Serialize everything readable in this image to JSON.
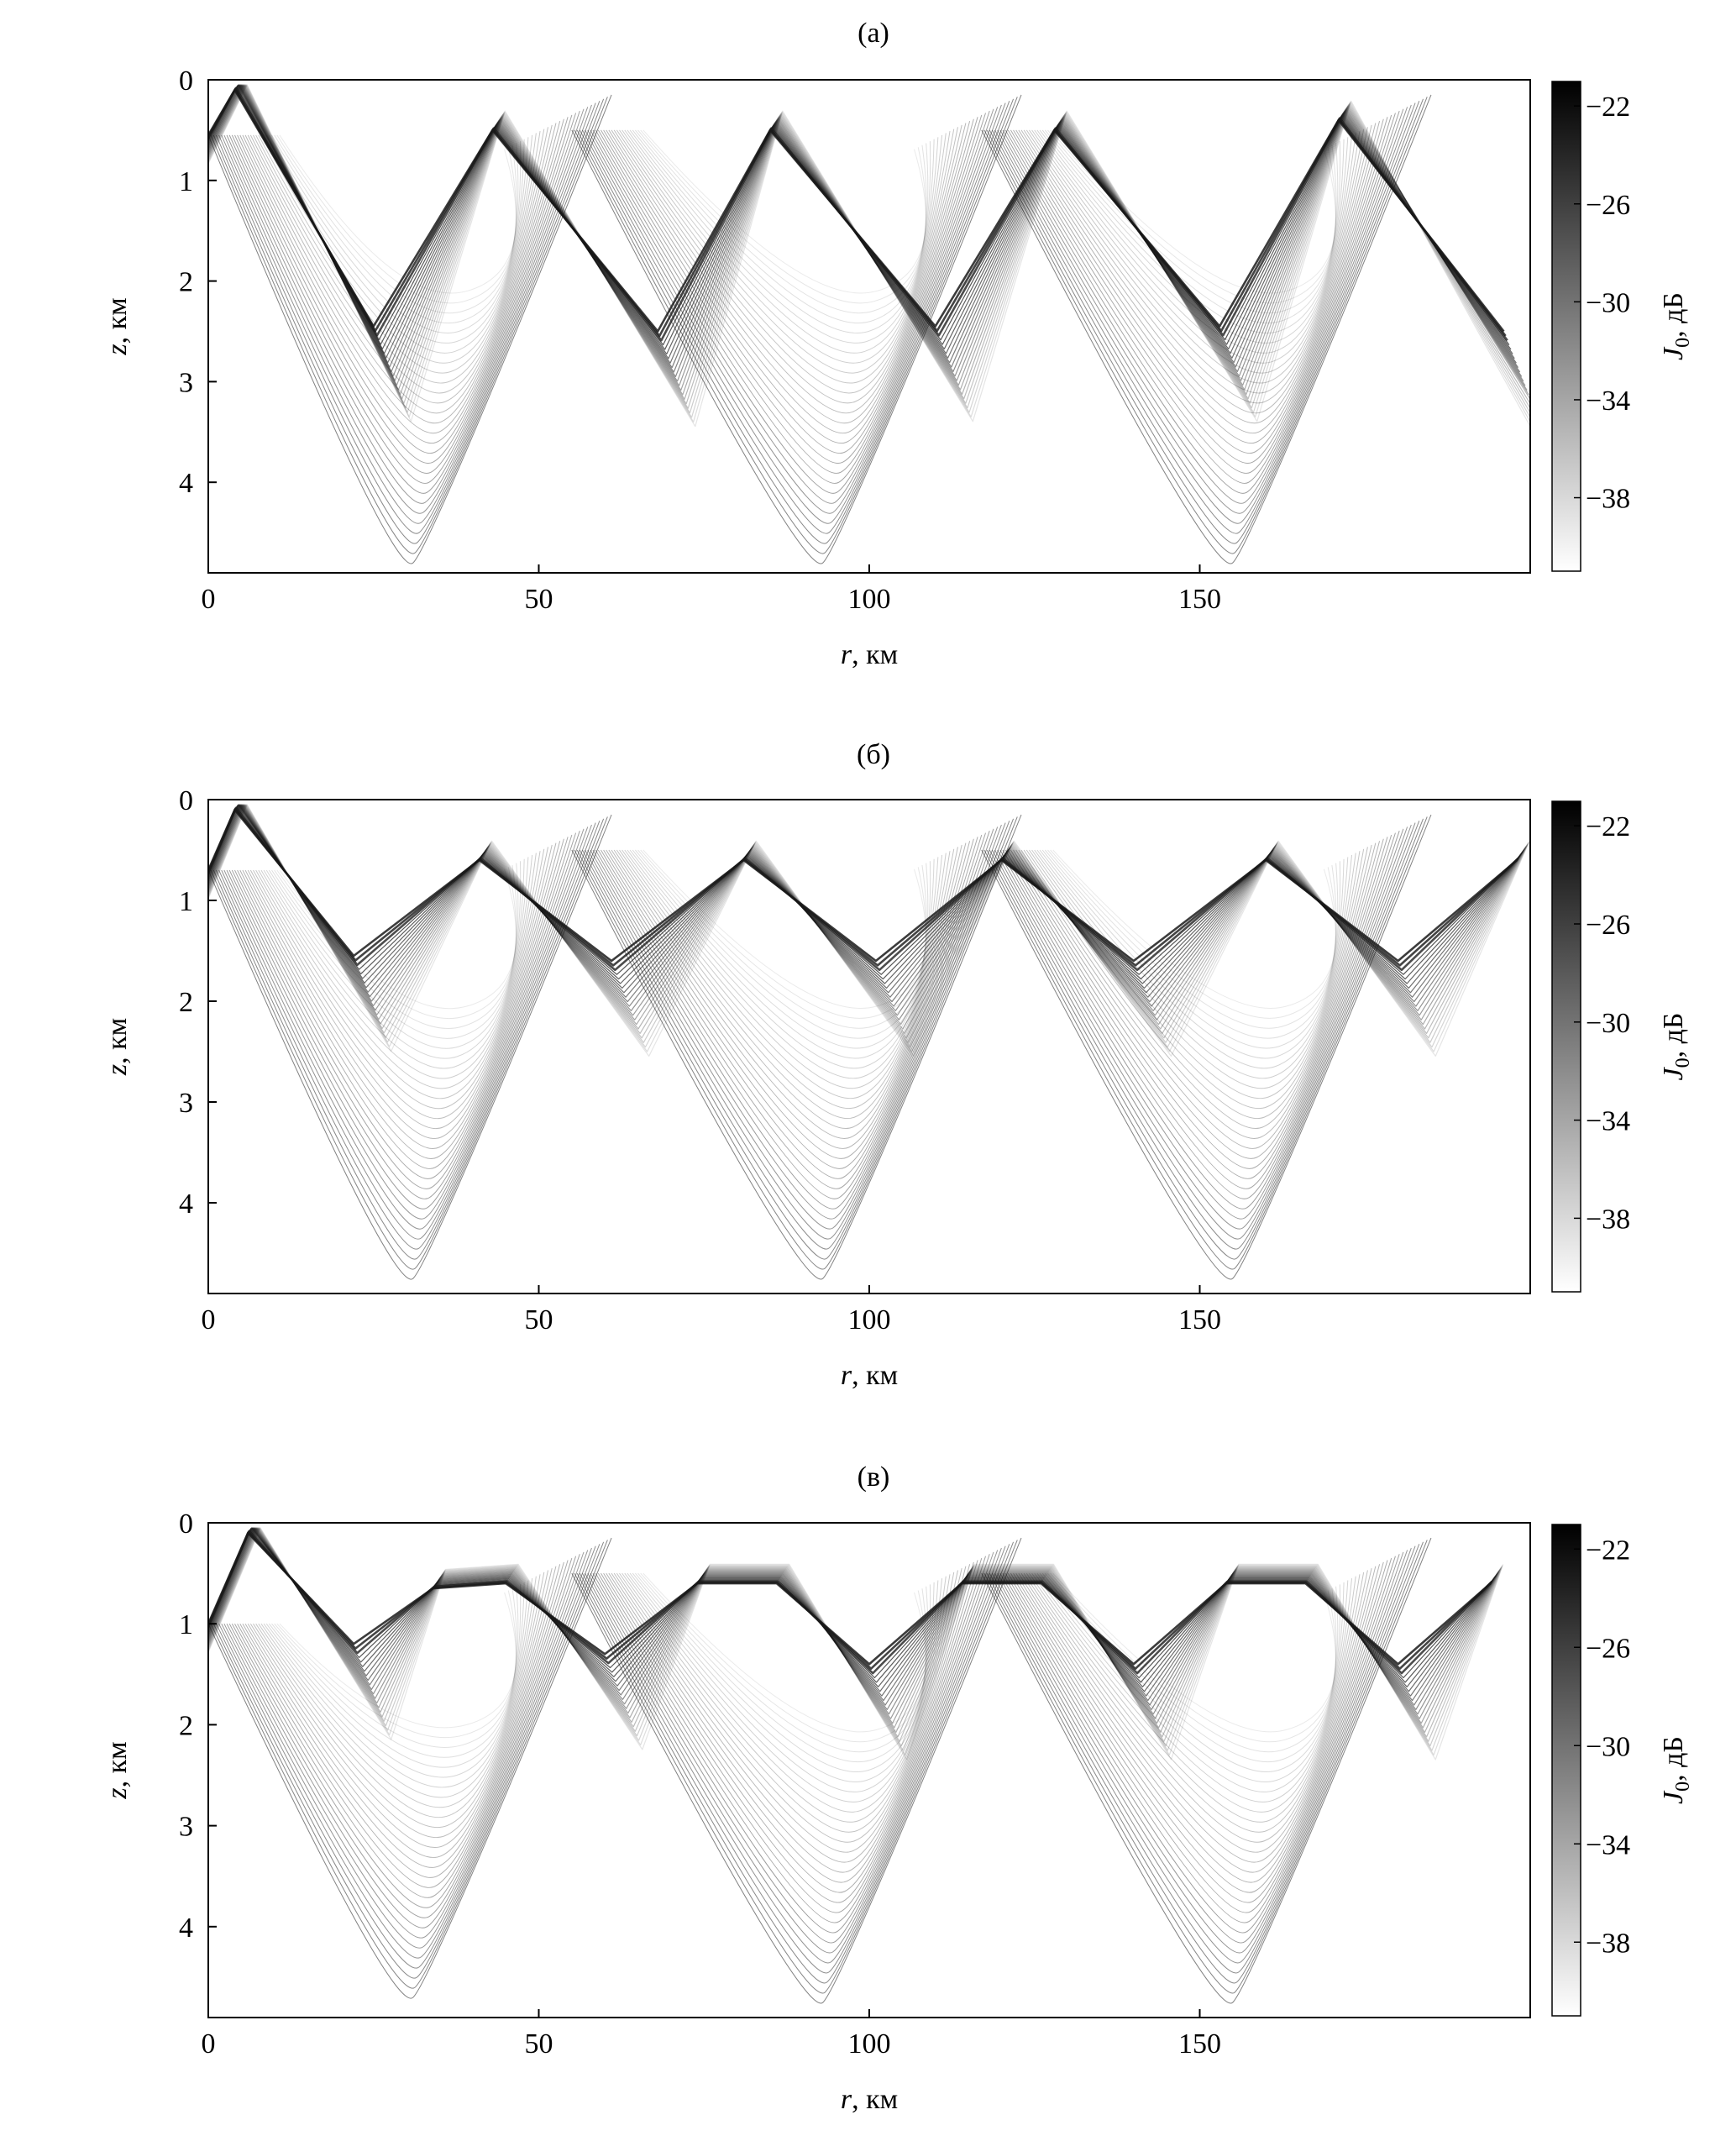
{
  "figure": {
    "panels": [
      {
        "id": "a",
        "label": "(а)"
      },
      {
        "id": "b",
        "label": "(б)"
      },
      {
        "id": "c",
        "label": "(в)"
      }
    ],
    "xlabel_var": "r",
    "xlabel_unit": ", км",
    "ylabel_var": "z",
    "ylabel_unit": ", км",
    "colorbar_var": "J",
    "colorbar_sub": "0",
    "colorbar_unit": ", дБ"
  },
  "colors": {
    "ink": "#000000",
    "paper": "#ffffff",
    "ray": "#1a1a1a"
  },
  "chart_data": [
    {
      "type": "heatmap",
      "panel": "(а)",
      "xlabel": "r, км",
      "ylabel": "z, км",
      "colorbar_label": "J0, дБ",
      "xlim": [
        0,
        200
      ],
      "ylim": [
        0,
        4.9
      ],
      "y_inverted": true,
      "x_ticks": [
        0,
        50,
        100,
        150
      ],
      "y_ticks": [
        0,
        1,
        2,
        3,
        4
      ],
      "colorbar_range": [
        -41,
        -21
      ],
      "colorbar_ticks": [
        -22,
        -26,
        -30,
        -34,
        -38
      ],
      "colormap": "gray-reversed",
      "source_depth_km": 0.55,
      "ray_turning_points": {
        "upper_km": [
          [
            4,
            0.1
          ],
          [
            43,
            0.5
          ],
          [
            85,
            0.5
          ],
          [
            128,
            0.5
          ],
          [
            171,
            0.4
          ]
        ],
        "lower_km": [
          [
            25,
            2.45
          ],
          [
            68,
            2.5
          ],
          [
            110,
            2.45
          ],
          [
            153,
            2.45
          ],
          [
            196,
            2.5
          ]
        ],
        "deep_bottom_km": [
          [
            31,
            4.8
          ],
          [
            93,
            4.8
          ],
          [
            155,
            4.8
          ]
        ]
      }
    },
    {
      "type": "heatmap",
      "panel": "(б)",
      "xlabel": "r, км",
      "ylabel": "z, км",
      "colorbar_label": "J0, дБ",
      "xlim": [
        0,
        200
      ],
      "ylim": [
        0,
        4.9
      ],
      "y_inverted": true,
      "x_ticks": [
        0,
        50,
        100,
        150
      ],
      "y_ticks": [
        0,
        1,
        2,
        3,
        4
      ],
      "colorbar_range": [
        -41,
        -21
      ],
      "colorbar_ticks": [
        -22,
        -26,
        -30,
        -34,
        -38
      ],
      "colormap": "gray-reversed",
      "source_depth_km": 0.7,
      "ray_turning_points": {
        "upper_km": [
          [
            4,
            0.1
          ],
          [
            41,
            0.6
          ],
          [
            81,
            0.6
          ],
          [
            120,
            0.6
          ],
          [
            160,
            0.6
          ],
          [
            198,
            0.6
          ]
        ],
        "lower_km": [
          [
            22,
            1.55
          ],
          [
            61,
            1.6
          ],
          [
            101,
            1.6
          ],
          [
            140,
            1.6
          ],
          [
            180,
            1.6
          ]
        ],
        "deep_bottom_km": [
          [
            31,
            4.75
          ],
          [
            93,
            4.75
          ],
          [
            155,
            4.75
          ]
        ]
      }
    },
    {
      "type": "heatmap",
      "panel": "(в)",
      "xlabel": "r, км",
      "ylabel": "z, км",
      "colorbar_label": "J0, дБ",
      "xlim": [
        0,
        200
      ],
      "ylim": [
        0,
        4.9
      ],
      "y_inverted": true,
      "x_ticks": [
        0,
        50,
        100,
        150
      ],
      "y_ticks": [
        0,
        1,
        2,
        3,
        4
      ],
      "colorbar_range": [
        -41,
        -21
      ],
      "colorbar_ticks": [
        -22,
        -26,
        -30,
        -34,
        -38
      ],
      "colormap": "gray-reversed",
      "source_depth_km": 1.0,
      "ray_turning_points": {
        "upper_km": [
          [
            6,
            0.1
          ],
          [
            34,
            0.65
          ],
          [
            45,
            0.6
          ],
          [
            74,
            0.6
          ],
          [
            86,
            0.6
          ],
          [
            114,
            0.6
          ],
          [
            126,
            0.6
          ],
          [
            154,
            0.6
          ],
          [
            166,
            0.6
          ],
          [
            194,
            0.6
          ]
        ],
        "lower_km": [
          [
            22,
            1.2
          ],
          [
            60,
            1.3
          ],
          [
            100,
            1.4
          ],
          [
            140,
            1.4
          ],
          [
            180,
            1.4
          ]
        ],
        "deep_bottom_km": [
          [
            31,
            4.7
          ],
          [
            93,
            4.75
          ],
          [
            155,
            4.75
          ]
        ]
      }
    }
  ]
}
